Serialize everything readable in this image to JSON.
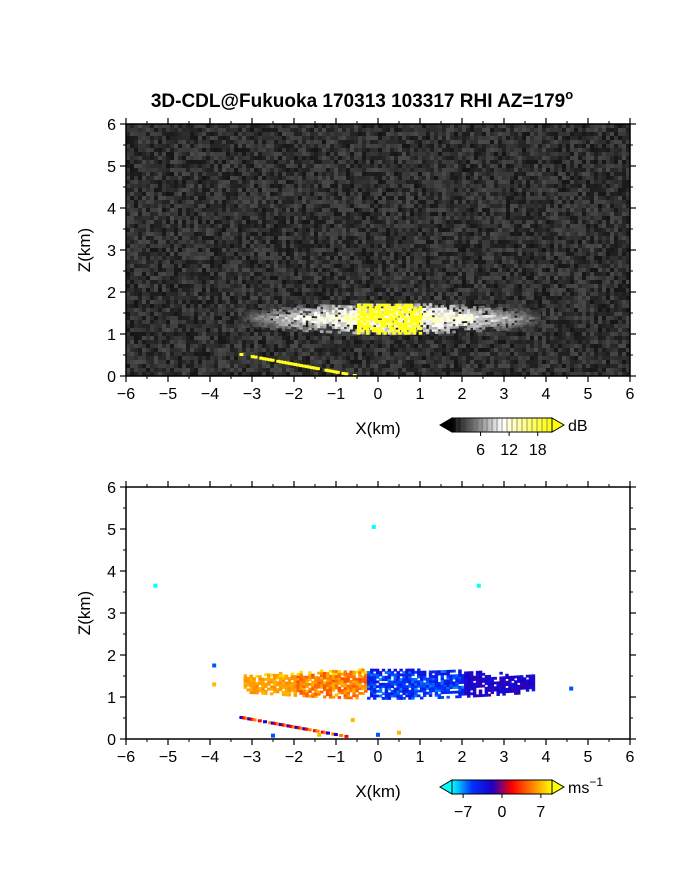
{
  "title": "3D-CDL@Fukuoka 170313 103317 RHI AZ=179",
  "title_superscript": "o",
  "chart_data": [
    {
      "type": "heatmap",
      "quantity": "backscatter intensity",
      "xlabel": "X(km)",
      "ylabel": "Z(km)",
      "xlim": [
        -6,
        6
      ],
      "ylim": [
        0,
        6
      ],
      "x_ticks": [
        -6,
        -5,
        -4,
        -3,
        -2,
        -1,
        0,
        1,
        2,
        3,
        4,
        5,
        6
      ],
      "y_ticks": [
        0,
        1,
        2,
        3,
        4,
        5,
        6
      ],
      "background": "noise",
      "colormap": [
        "#000000",
        "#ffffff",
        "#ffff00"
      ],
      "colorbar": {
        "unit": "dB",
        "ticks": [
          6,
          12,
          18
        ],
        "range": [
          0,
          21
        ]
      },
      "features": [
        {
          "kind": "layer",
          "x_range": [
            -3.2,
            3.8
          ],
          "z_center": 1.4,
          "z_halfwidth": 0.3,
          "max_value": 18
        },
        {
          "kind": "core",
          "x_range": [
            -0.5,
            1.0
          ],
          "z_range": [
            1.05,
            1.75
          ],
          "value": 20
        },
        {
          "kind": "line",
          "from": [
            -3.3,
            0.5
          ],
          "to": [
            -0.6,
            0.0
          ],
          "value": 20
        }
      ]
    },
    {
      "type": "heatmap",
      "quantity": "Doppler velocity",
      "xlabel": "X(km)",
      "ylabel": "Z(km)",
      "xlim": [
        -6,
        6
      ],
      "ylim": [
        0,
        6
      ],
      "x_ticks": [
        -6,
        -5,
        -4,
        -3,
        -2,
        -1,
        0,
        1,
        2,
        3,
        4,
        5,
        6
      ],
      "y_ticks": [
        0,
        1,
        2,
        3,
        4,
        5,
        6
      ],
      "background": "none",
      "colormap": [
        "#00ffff",
        "#0032ff",
        "#1a00c8",
        "#ff0000",
        "#ff8000",
        "#ffff00"
      ],
      "colorbar": {
        "unit": "ms",
        "unit_superscript": "−1",
        "ticks": [
          -7,
          0,
          7
        ],
        "tick_labels": [
          "−7",
          "0",
          "7"
        ],
        "range": [
          -9,
          9
        ]
      },
      "features": [
        {
          "kind": "layer",
          "x_range": [
            -3.2,
            3.7
          ],
          "z_center": 1.35,
          "z_halfwidth": 0.3,
          "value_left": 7,
          "value_right": -7
        },
        {
          "kind": "line",
          "from": [
            -3.3,
            0.5
          ],
          "to": [
            -0.8,
            0.05
          ],
          "value": 0
        },
        {
          "kind": "points",
          "coords": [
            [
              -0.1,
              5.05
            ],
            [
              -5.3,
              3.65
            ],
            [
              2.4,
              3.65
            ],
            [
              4.6,
              1.2
            ],
            [
              -3.9,
              1.3
            ],
            [
              -3.9,
              1.75
            ],
            [
              -0.6,
              0.45
            ],
            [
              0.0,
              0.1
            ],
            [
              0.5,
              0.15
            ],
            [
              -2.5,
              0.08
            ],
            [
              -1.4,
              0.1
            ]
          ]
        }
      ]
    }
  ]
}
